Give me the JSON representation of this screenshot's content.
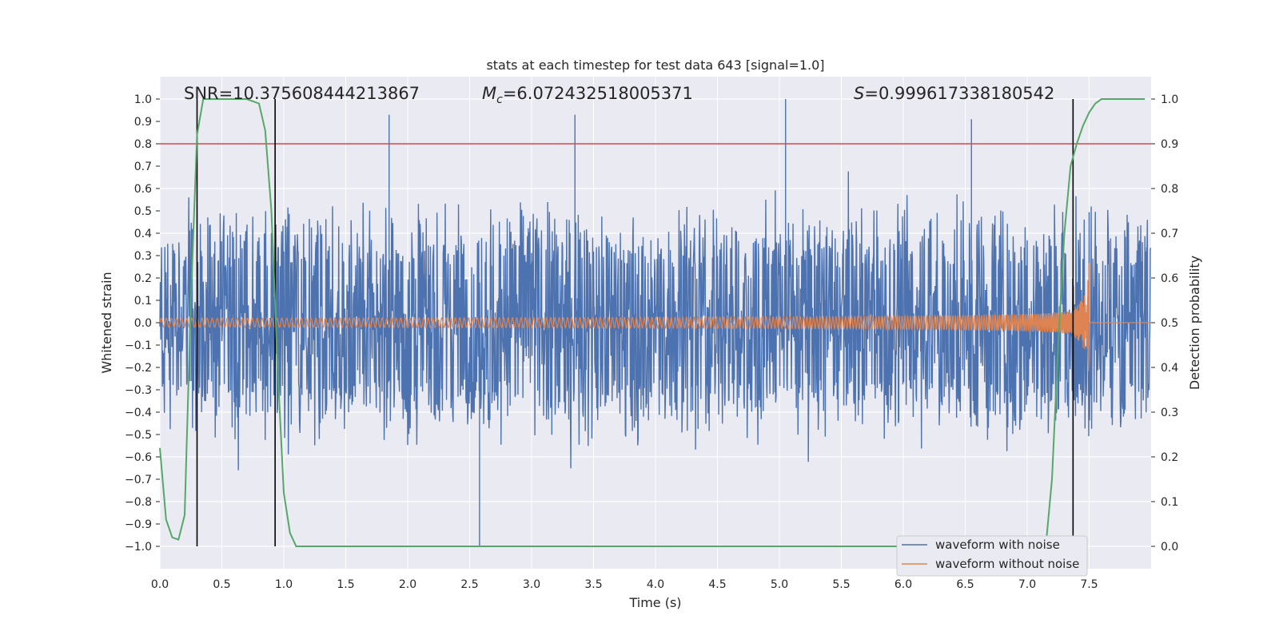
{
  "chart_data": {
    "type": "line",
    "title": "stats at each timestep for test data 643 [signal=1.0]",
    "xlabel": "Time (s)",
    "ylabel_left": "Whitened strain",
    "ylabel_right": "Detection probability",
    "xlim": [
      0.0,
      8.0
    ],
    "ylim_left": [
      -1.1,
      1.1
    ],
    "ylim_right": [
      -0.05,
      1.05
    ],
    "x_ticks": [
      "0.0",
      "0.5",
      "1.0",
      "1.5",
      "2.0",
      "2.5",
      "3.0",
      "3.5",
      "4.0",
      "4.5",
      "5.0",
      "5.5",
      "6.0",
      "6.5",
      "7.0",
      "7.5"
    ],
    "y_left_ticks": [
      "1.0",
      "0.9",
      "0.8",
      "0.7",
      "0.6",
      "0.5",
      "0.4",
      "0.3",
      "0.2",
      "0.1",
      "0.0",
      "−0.1",
      "−0.2",
      "−0.3",
      "−0.4",
      "−0.5",
      "−0.6",
      "−0.7",
      "−0.8",
      "−0.9",
      "−1.0"
    ],
    "y_right_ticks": [
      "1.0",
      "0.9",
      "0.8",
      "0.7",
      "0.6",
      "0.5",
      "0.4",
      "0.3",
      "0.2",
      "0.1",
      "0.0"
    ],
    "annotations": {
      "snr": "SNR=10.375608444213867",
      "mc_symbol": "M",
      "mc_sub": "c",
      "mc_value": "=6.072432518005371",
      "s_symbol": "S",
      "s_value": "=0.999617338180542"
    },
    "threshold": {
      "value": 0.8,
      "axis": "left",
      "color": "#c44e52"
    },
    "vlines": [
      0.3,
      0.93,
      7.37
    ],
    "series": [
      {
        "name": "waveform with noise",
        "color": "#4c72b0",
        "noise_amplitude": 0.3,
        "max": 1.0,
        "min": -1.0
      },
      {
        "name": "waveform without noise",
        "color": "#dd8452",
        "start_amplitude": 0.02,
        "peak_amplitude": 0.3,
        "merger_time": 7.5
      },
      {
        "color": "#55a868",
        "axis": "right",
        "x": [
          0.0,
          0.05,
          0.1,
          0.15,
          0.2,
          0.25,
          0.3,
          0.35,
          0.4,
          0.5,
          0.6,
          0.7,
          0.8,
          0.85,
          0.9,
          0.95,
          1.0,
          1.05,
          1.1,
          1.15,
          1.2,
          2.0,
          3.0,
          4.0,
          5.0,
          6.0,
          6.5,
          7.0,
          7.15,
          7.2,
          7.25,
          7.3,
          7.35,
          7.4,
          7.45,
          7.5,
          7.55,
          7.6,
          7.7,
          7.8,
          7.95
        ],
        "y": [
          0.22,
          0.06,
          0.02,
          0.015,
          0.07,
          0.55,
          0.92,
          1.0,
          1.0,
          1.0,
          1.0,
          1.0,
          0.99,
          0.93,
          0.75,
          0.4,
          0.12,
          0.03,
          0.0,
          0.0,
          0.0,
          0.0,
          0.0,
          0.0,
          0.0,
          0.0,
          0.0,
          0.0,
          0.0,
          0.15,
          0.45,
          0.7,
          0.85,
          0.9,
          0.94,
          0.97,
          0.99,
          1.0,
          1.0,
          1.0,
          1.0
        ]
      }
    ],
    "legend_position": "lower-right",
    "grid": true
  }
}
